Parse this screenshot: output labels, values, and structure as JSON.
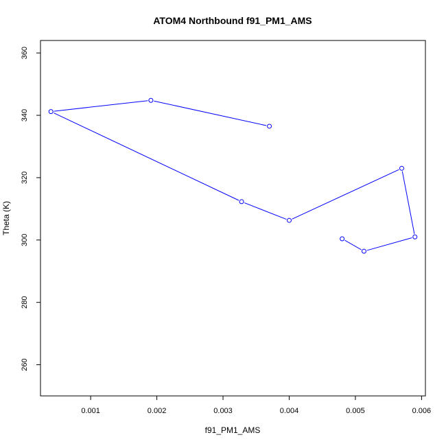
{
  "chart_data": {
    "type": "line",
    "title": "ATOM4 Northbound f91_PM1_AMS",
    "xlabel": "f91_PM1_AMS",
    "ylabel": "Theta (K)",
    "xlim": [
      0.000242,
      0.006058
    ],
    "ylim": [
      250,
      364
    ],
    "x_ticks": [
      0.001,
      0.002,
      0.003,
      0.004,
      0.005,
      0.006
    ],
    "x_tick_labels": [
      "0.001",
      "0.002",
      "0.003",
      "0.004",
      "0.005",
      "0.006"
    ],
    "y_ticks": [
      260,
      280,
      300,
      320,
      340,
      360
    ],
    "y_tick_labels": [
      "260",
      "280",
      "300",
      "320",
      "340",
      "360"
    ],
    "grid": false,
    "series": [
      {
        "color": "#0000ff",
        "marker": "open-circle",
        "x": [
          0.0037,
          0.00191,
          0.0004,
          0.00328,
          0.004,
          0.0057,
          0.0059,
          0.00513,
          0.0048
        ],
        "y": [
          336.5,
          344.8,
          341.2,
          312.3,
          306.3,
          323.0,
          301.0,
          296.4,
          300.4
        ]
      }
    ]
  }
}
